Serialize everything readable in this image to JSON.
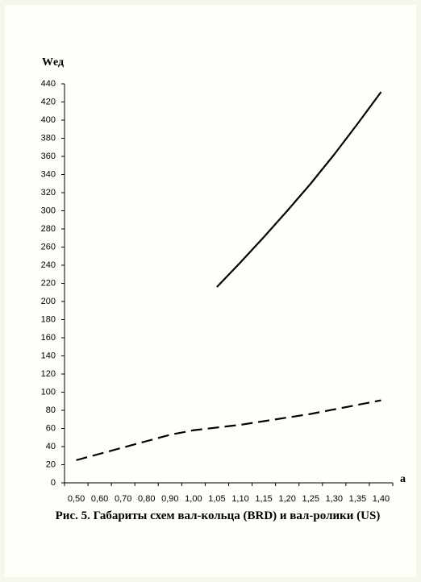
{
  "chart_data": {
    "type": "line",
    "title": "Рис. 5. Габариты схем вал-кольца (BRD) и вал-ролики (US)",
    "y_label": "Wед",
    "x_label": "a",
    "categories": [
      "0,50",
      "0,60",
      "0,70",
      "0,80",
      "0,90",
      "1,00",
      "1,05",
      "1,10",
      "1,15",
      "1,20",
      "1,25",
      "1,30",
      "1,35",
      "1,40"
    ],
    "series": [
      {
        "color": "#000000",
        "dashed": false,
        "values": [
          null,
          null,
          null,
          null,
          null,
          null,
          216,
          243,
          271,
          300,
          330,
          362,
          396,
          431
        ]
      },
      {
        "color": "#000000",
        "dashed": true,
        "values": [
          25,
          32,
          39,
          46,
          53,
          58,
          61,
          64,
          68,
          72,
          76,
          81,
          86,
          91
        ]
      }
    ],
    "ylim": [
      0,
      440
    ],
    "yticks": [
      0,
      20,
      40,
      60,
      80,
      100,
      120,
      140,
      160,
      180,
      200,
      220,
      240,
      260,
      280,
      300,
      320,
      340,
      360,
      380,
      400,
      420,
      440
    ],
    "grid": false
  }
}
